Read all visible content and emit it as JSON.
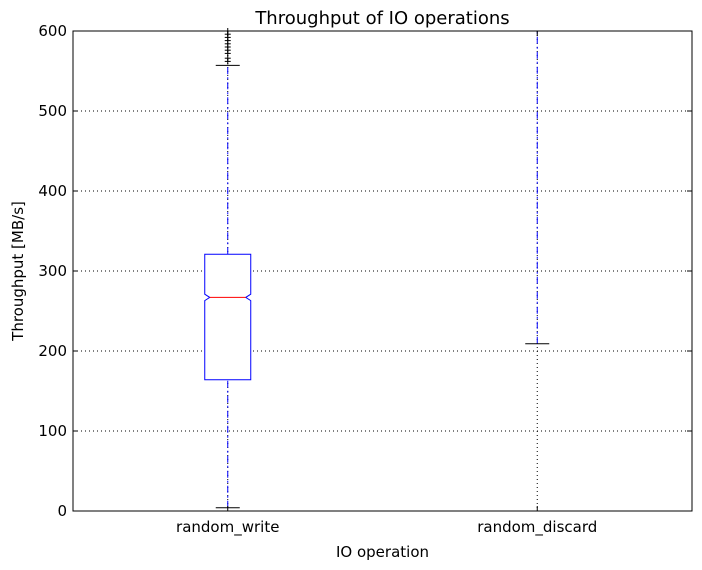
{
  "chart_data": {
    "type": "box",
    "title": "Throughput of IO operations",
    "xlabel": "IO operation",
    "ylabel": "Throughput [MB/s]",
    "ylim": [
      0,
      600
    ],
    "yticks": [
      0,
      100,
      200,
      300,
      400,
      500,
      600
    ],
    "grid": true,
    "notched": true,
    "categories": [
      "random_write",
      "random_discard"
    ],
    "boxes": [
      {
        "name": "random_write",
        "whisker_low": 4,
        "q1": 164,
        "median": 267,
        "q3": 321,
        "notch_low": 263,
        "notch_high": 271,
        "whisker_high": 557,
        "outliers": [
          562,
          566,
          572,
          576,
          580,
          584,
          588,
          592,
          596,
          600
        ]
      },
      {
        "name": "random_discard",
        "whisker_low": 209,
        "whisker_high": 600
      }
    ],
    "colors": {
      "box": "#0000ff",
      "median": "#ff0000",
      "whisker": "#0000ff",
      "cap": "#000000",
      "outlier": "#000000",
      "grid": "#000000"
    }
  }
}
